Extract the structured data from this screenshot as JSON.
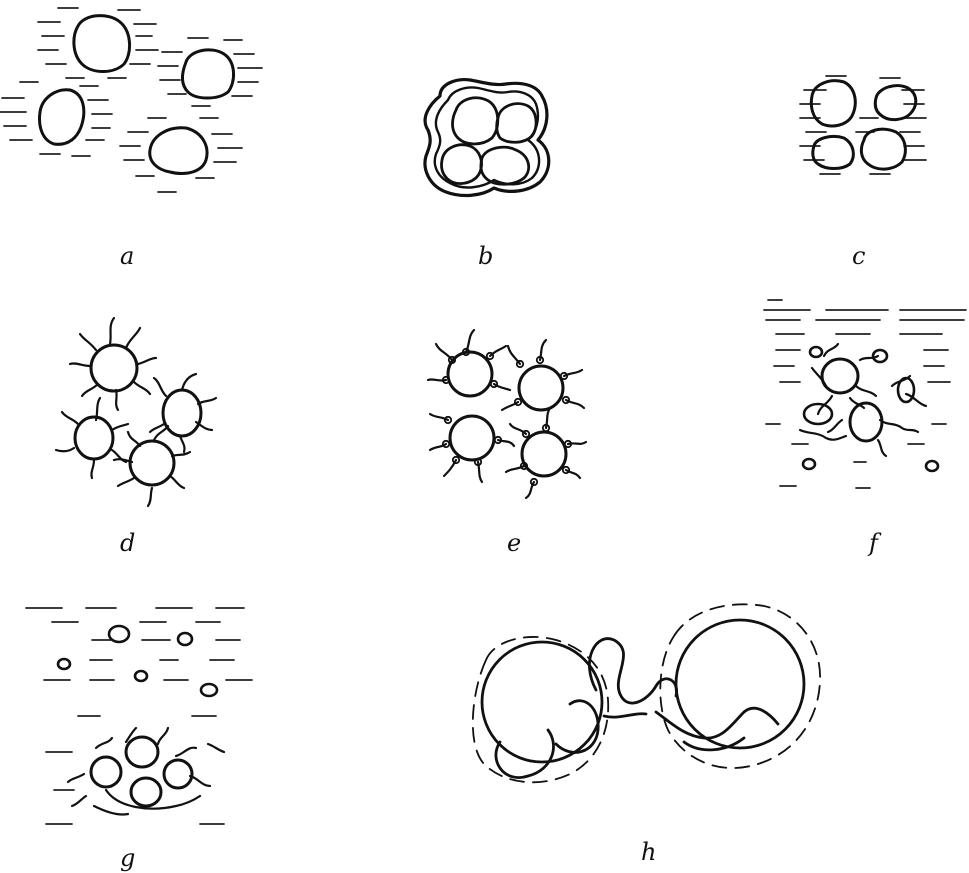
{
  "figure": {
    "panel_labels": {
      "a": "a",
      "b": "b",
      "c": "c",
      "d": "d",
      "e": "e",
      "f": "f",
      "g": "g",
      "h": "h"
    }
  },
  "colors": {
    "ink": "#111111",
    "background": "#ffffff"
  }
}
